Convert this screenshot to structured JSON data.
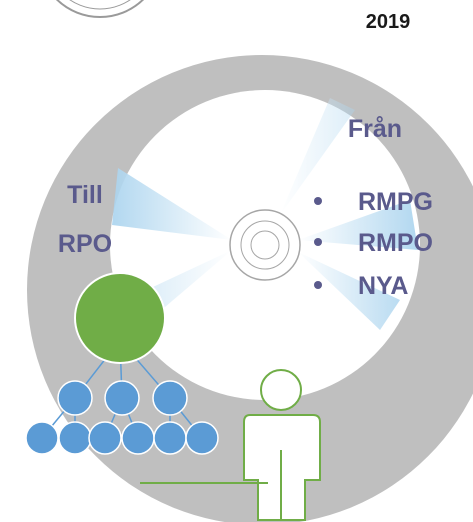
{
  "year": "2019",
  "from": {
    "title": "Från",
    "items": [
      "RMPG",
      "RMPO",
      "NYA"
    ]
  },
  "to": {
    "lines": [
      "Till",
      "RPO"
    ]
  }
}
